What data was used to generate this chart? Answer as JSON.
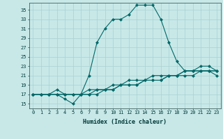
{
  "title": "",
  "xlabel": "Humidex (Indice chaleur)",
  "ylabel": "",
  "bg_color": "#c8e8e8",
  "grid_color": "#a8d0d0",
  "line_color": "#006868",
  "xlim": [
    -0.5,
    23.5
  ],
  "ylim": [
    14.0,
    36.5
  ],
  "yticks": [
    15,
    17,
    19,
    21,
    23,
    25,
    27,
    29,
    31,
    33,
    35
  ],
  "xticks": [
    0,
    1,
    2,
    3,
    4,
    5,
    6,
    7,
    8,
    9,
    10,
    11,
    12,
    13,
    14,
    15,
    16,
    17,
    18,
    19,
    20,
    21,
    22,
    23
  ],
  "line1_x": [
    0,
    1,
    2,
    3,
    4,
    5,
    6,
    7,
    8,
    9,
    10,
    11,
    12,
    13,
    14,
    15,
    16,
    17,
    18,
    19,
    20,
    21,
    22,
    23
  ],
  "line1_y": [
    17,
    17,
    17,
    17,
    16,
    15,
    17,
    21,
    28,
    31,
    33,
    33,
    34,
    36,
    36,
    36,
    33,
    28,
    24,
    22,
    22,
    23,
    23,
    22
  ],
  "line2_x": [
    0,
    1,
    2,
    3,
    4,
    5,
    6,
    7,
    8,
    9,
    10,
    11,
    12,
    13,
    14,
    15,
    16,
    17,
    18,
    19,
    20,
    21,
    22,
    23
  ],
  "line2_y": [
    17,
    17,
    17,
    18,
    17,
    17,
    17,
    17,
    17,
    18,
    18,
    19,
    19,
    19,
    20,
    20,
    20,
    21,
    21,
    22,
    22,
    22,
    22,
    22
  ],
  "line3_x": [
    0,
    1,
    2,
    3,
    4,
    5,
    6,
    7,
    8,
    9,
    10,
    11,
    12,
    13,
    14,
    15,
    16,
    17,
    18,
    19,
    20,
    21,
    22,
    23
  ],
  "line3_y": [
    17,
    17,
    17,
    17,
    17,
    17,
    17,
    18,
    18,
    18,
    19,
    19,
    20,
    20,
    20,
    21,
    21,
    21,
    21,
    22,
    22,
    22,
    22,
    22
  ],
  "line4_x": [
    0,
    1,
    2,
    3,
    4,
    5,
    6,
    7,
    8,
    9,
    10,
    11,
    12,
    13,
    14,
    15,
    16,
    17,
    18,
    19,
    20,
    21,
    22,
    23
  ],
  "line4_y": [
    17,
    17,
    17,
    17,
    17,
    17,
    17,
    17,
    18,
    18,
    18,
    19,
    19,
    19,
    20,
    20,
    20,
    21,
    21,
    21,
    21,
    22,
    22,
    21
  ],
  "tick_fontsize": 5.0,
  "xlabel_fontsize": 6.0,
  "marker_size": 2.5,
  "line_width": 0.8
}
